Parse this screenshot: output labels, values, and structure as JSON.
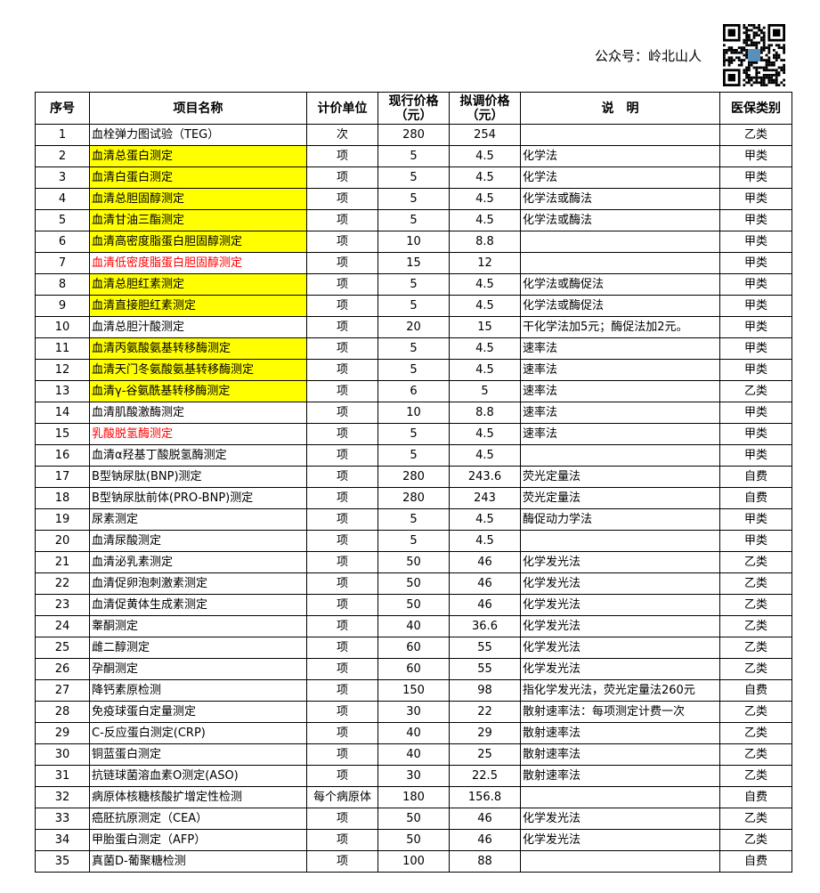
{
  "header": {
    "account": "公众号：岭北山人",
    "qr_label": "QR code"
  },
  "colors": {
    "highlight": "#ffff00",
    "red_text": "#ff0000"
  },
  "columns": [
    "序号",
    "项目名称",
    "计价单位",
    "现行价格（元）",
    "拟调价格（元）",
    "说　明",
    "医保类别"
  ],
  "rows": [
    {
      "no": "1",
      "name": "血栓弹力图试验（TEG）",
      "unit": "次",
      "cur": "280",
      "new": "254",
      "note": "",
      "cat": "乙类"
    },
    {
      "no": "2",
      "name": "血清总蛋白测定",
      "unit": "项",
      "cur": "5",
      "new": "4.5",
      "note": "化学法",
      "cat": "甲类",
      "highlight": true
    },
    {
      "no": "3",
      "name": "血清白蛋白测定",
      "unit": "项",
      "cur": "5",
      "new": "4.5",
      "note": "化学法",
      "cat": "甲类",
      "highlight": true
    },
    {
      "no": "4",
      "name": "血清总胆固醇测定",
      "unit": "项",
      "cur": "5",
      "new": "4.5",
      "note": "化学法或酶法",
      "cat": "甲类",
      "highlight": true
    },
    {
      "no": "5",
      "name": "血清甘油三酯测定",
      "unit": "项",
      "cur": "5",
      "new": "4.5",
      "note": "化学法或酶法",
      "cat": "甲类",
      "highlight": true
    },
    {
      "no": "6",
      "name": "血清高密度脂蛋白胆固醇测定",
      "unit": "项",
      "cur": "10",
      "new": "8.8",
      "note": "",
      "cat": "甲类",
      "highlight": true
    },
    {
      "no": "7",
      "name": "血清低密度脂蛋白胆固醇测定",
      "unit": "项",
      "cur": "15",
      "new": "12",
      "note": "",
      "cat": "甲类",
      "red": true
    },
    {
      "no": "8",
      "name": "血清总胆红素测定",
      "unit": "项",
      "cur": "5",
      "new": "4.5",
      "note": "化学法或酶促法",
      "cat": "甲类",
      "highlight": true
    },
    {
      "no": "9",
      "name": "血清直接胆红素测定",
      "unit": "项",
      "cur": "5",
      "new": "4.5",
      "note": "化学法或酶促法",
      "cat": "甲类",
      "highlight": true
    },
    {
      "no": "10",
      "name": "血清总胆汁酸测定",
      "unit": "项",
      "cur": "20",
      "new": "15",
      "note": "干化学法加5元；酶促法加2元。",
      "cat": "甲类"
    },
    {
      "no": "11",
      "name": "血清丙氨酸氨基转移酶测定",
      "unit": "项",
      "cur": "5",
      "new": "4.5",
      "note": "速率法",
      "cat": "甲类",
      "highlight": true
    },
    {
      "no": "12",
      "name": "血清天门冬氨酸氨基转移酶测定",
      "unit": "项",
      "cur": "5",
      "new": "4.5",
      "note": "速率法",
      "cat": "甲类",
      "highlight": true
    },
    {
      "no": "13",
      "name": "血清γ-谷氨酰基转移酶测定",
      "unit": "项",
      "cur": "6",
      "new": "5",
      "note": "速率法",
      "cat": "乙类",
      "highlight": true
    },
    {
      "no": "14",
      "name": "血清肌酸激酶测定",
      "unit": "项",
      "cur": "10",
      "new": "8.8",
      "note": "速率法",
      "cat": "甲类"
    },
    {
      "no": "15",
      "name": "乳酸脱氢酶测定",
      "unit": "项",
      "cur": "5",
      "new": "4.5",
      "note": "速率法",
      "cat": "甲类",
      "red": true
    },
    {
      "no": "16",
      "name": "血清α羟基丁酸脱氢酶测定",
      "unit": "项",
      "cur": "5",
      "new": "4.5",
      "note": "",
      "cat": "甲类"
    },
    {
      "no": "17",
      "name": "B型钠尿肽(BNP)测定",
      "unit": "项",
      "cur": "280",
      "new": "243.6",
      "note": "荧光定量法",
      "cat": "自费"
    },
    {
      "no": "18",
      "name": "B型钠尿肽前体(PRO-BNP)测定",
      "unit": "项",
      "cur": "280",
      "new": "243",
      "note": "荧光定量法",
      "cat": "自费"
    },
    {
      "no": "19",
      "name": "尿素测定",
      "unit": "项",
      "cur": "5",
      "new": "4.5",
      "note": "酶促动力学法",
      "cat": "甲类"
    },
    {
      "no": "20",
      "name": "血清尿酸测定",
      "unit": "项",
      "cur": "5",
      "new": "4.5",
      "note": "",
      "cat": "甲类"
    },
    {
      "no": "21",
      "name": "血清泌乳素测定",
      "unit": "项",
      "cur": "50",
      "new": "46",
      "note": "化学发光法",
      "cat": "乙类"
    },
    {
      "no": "22",
      "name": "血清促卵泡刺激素测定",
      "unit": "项",
      "cur": "50",
      "new": "46",
      "note": "化学发光法",
      "cat": "乙类"
    },
    {
      "no": "23",
      "name": "血清促黄体生成素测定",
      "unit": "项",
      "cur": "50",
      "new": "46",
      "note": "化学发光法",
      "cat": "乙类"
    },
    {
      "no": "24",
      "name": "睾酮测定",
      "unit": "项",
      "cur": "40",
      "new": "36.6",
      "note": "化学发光法",
      "cat": "乙类"
    },
    {
      "no": "25",
      "name": "雌二醇测定",
      "unit": "项",
      "cur": "60",
      "new": "55",
      "note": "化学发光法",
      "cat": "乙类"
    },
    {
      "no": "26",
      "name": "孕酮测定",
      "unit": "项",
      "cur": "60",
      "new": "55",
      "note": "化学发光法",
      "cat": "乙类"
    },
    {
      "no": "27",
      "name": "降钙素原检测",
      "unit": "项",
      "cur": "150",
      "new": "98",
      "note": "指化学发光法，荧光定量法260元",
      "cat": "自费"
    },
    {
      "no": "28",
      "name": "免疫球蛋白定量测定",
      "unit": "项",
      "cur": "30",
      "new": "22",
      "note": "散射速率法：每项测定计费一次",
      "cat": "乙类"
    },
    {
      "no": "29",
      "name": "C-反应蛋白测定(CRP)",
      "unit": "项",
      "cur": "40",
      "new": "29",
      "note": "散射速率法",
      "cat": "乙类"
    },
    {
      "no": "30",
      "name": "铜蓝蛋白测定",
      "unit": "项",
      "cur": "40",
      "new": "25",
      "note": "散射速率法",
      "cat": "乙类"
    },
    {
      "no": "31",
      "name": "抗链球菌溶血素O测定(ASO)",
      "unit": "项",
      "cur": "30",
      "new": "22.5",
      "note": "散射速率法",
      "cat": "乙类"
    },
    {
      "no": "32",
      "name": "病原体核糖核酸扩增定性检测",
      "unit": "每个病原体",
      "cur": "180",
      "new": "156.8",
      "note": "",
      "cat": "自费"
    },
    {
      "no": "33",
      "name": "癌胚抗原测定（CEA）",
      "unit": "项",
      "cur": "50",
      "new": "46",
      "note": "化学发光法",
      "cat": "乙类"
    },
    {
      "no": "34",
      "name": "甲胎蛋白测定（AFP）",
      "unit": "项",
      "cur": "50",
      "new": "46",
      "note": "化学发光法",
      "cat": "乙类"
    },
    {
      "no": "35",
      "name": "真菌D-葡聚糖检测",
      "unit": "项",
      "cur": "100",
      "new": "88",
      "note": "",
      "cat": "自费"
    }
  ]
}
